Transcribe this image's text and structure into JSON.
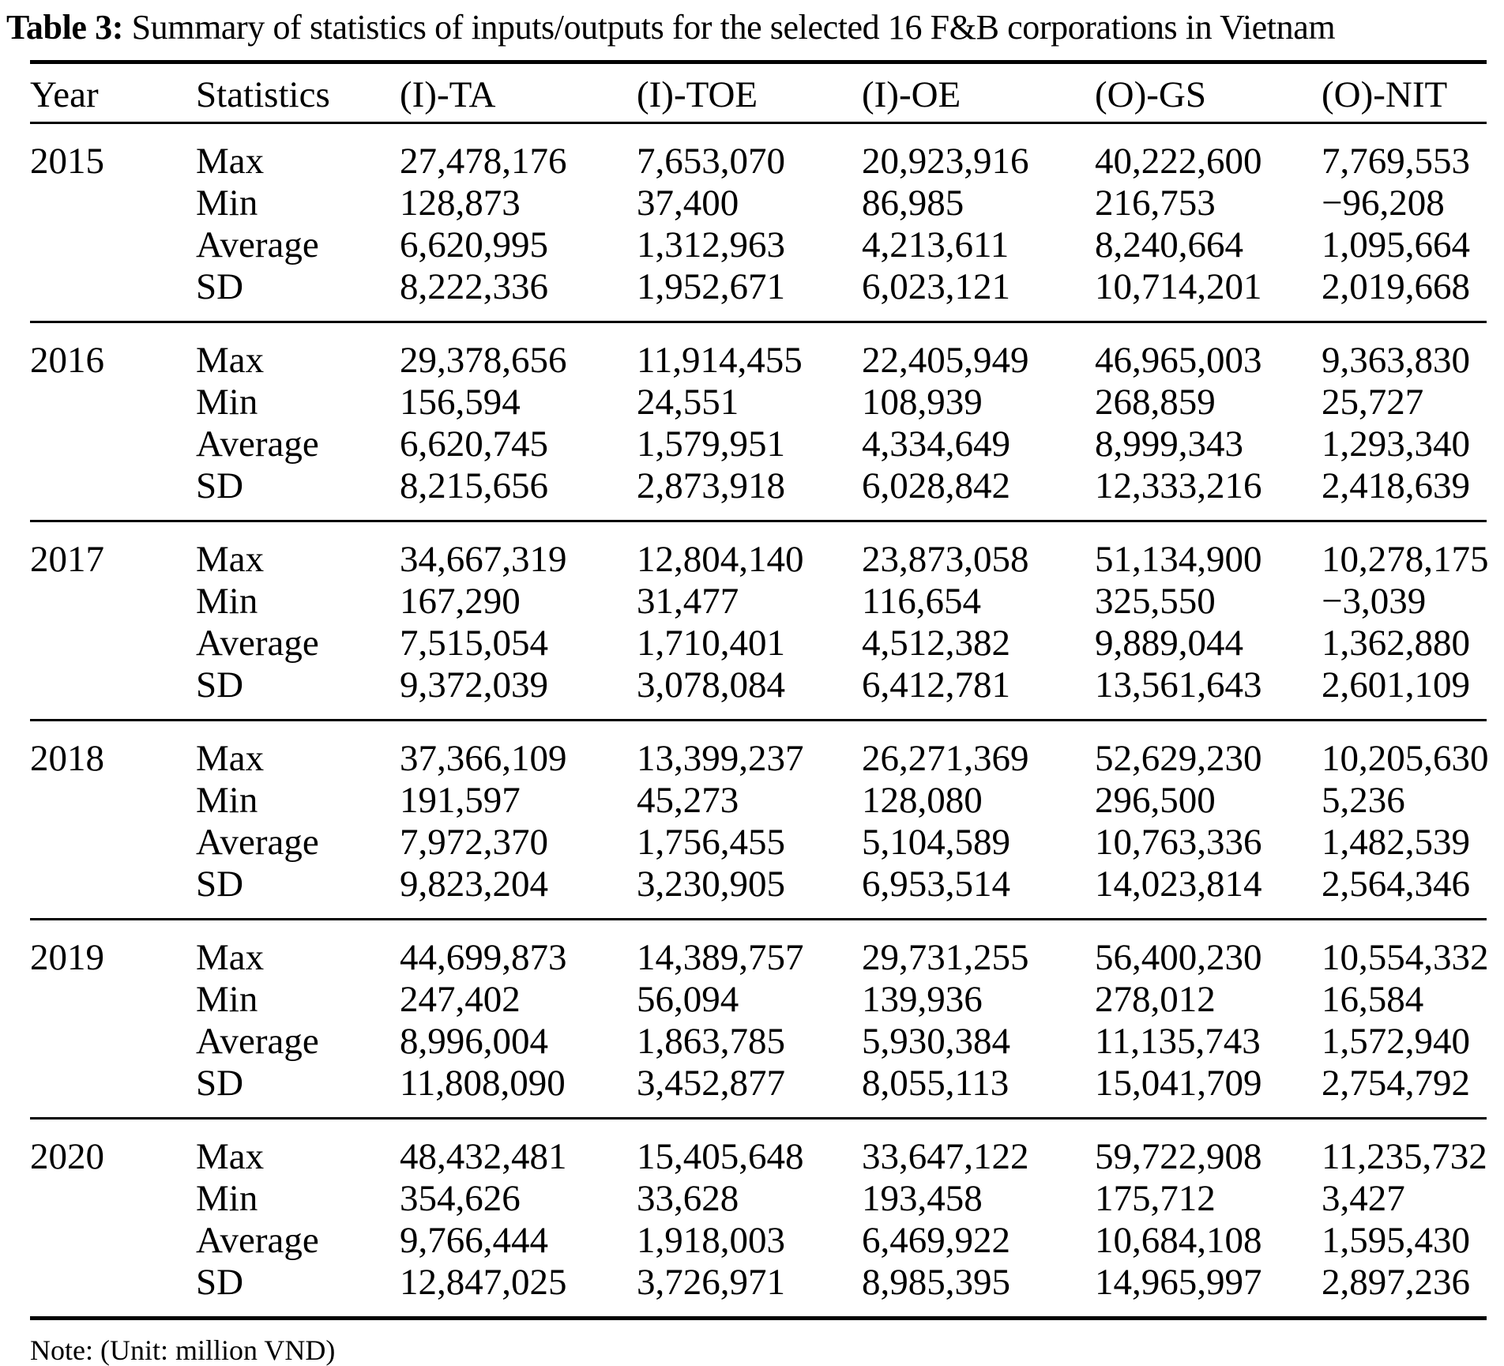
{
  "title": {
    "label": "Table 3:",
    "text": "Summary of statistics of inputs/outputs for the selected 16 F&B corporations in Vietnam"
  },
  "table": {
    "columns": [
      "Year",
      "Statistics",
      "(I)-TA",
      "(I)-TOE",
      "(I)-OE",
      "(O)-GS",
      "(O)-NIT"
    ],
    "blocks": [
      {
        "year": "2015",
        "rows": [
          {
            "stat": "Max",
            "values": [
              "27,478,176",
              "7,653,070",
              "20,923,916",
              "40,222,600",
              "7,769,553"
            ]
          },
          {
            "stat": "Min",
            "values": [
              "128,873",
              "37,400",
              "86,985",
              "216,753",
              "−96,208"
            ]
          },
          {
            "stat": "Average",
            "values": [
              "6,620,995",
              "1,312,963",
              "4,213,611",
              "8,240,664",
              "1,095,664"
            ]
          },
          {
            "stat": "SD",
            "values": [
              "8,222,336",
              "1,952,671",
              "6,023,121",
              "10,714,201",
              "2,019,668"
            ]
          }
        ]
      },
      {
        "year": "2016",
        "rows": [
          {
            "stat": "Max",
            "values": [
              "29,378,656",
              "11,914,455",
              "22,405,949",
              "46,965,003",
              "9,363,830"
            ]
          },
          {
            "stat": "Min",
            "values": [
              "156,594",
              "24,551",
              "108,939",
              "268,859",
              "25,727"
            ]
          },
          {
            "stat": "Average",
            "values": [
              "6,620,745",
              "1,579,951",
              "4,334,649",
              "8,999,343",
              "1,293,340"
            ]
          },
          {
            "stat": "SD",
            "values": [
              "8,215,656",
              "2,873,918",
              "6,028,842",
              "12,333,216",
              "2,418,639"
            ]
          }
        ]
      },
      {
        "year": "2017",
        "rows": [
          {
            "stat": "Max",
            "values": [
              "34,667,319",
              "12,804,140",
              "23,873,058",
              "51,134,900",
              "10,278,175"
            ]
          },
          {
            "stat": "Min",
            "values": [
              "167,290",
              "31,477",
              "116,654",
              "325,550",
              "−3,039"
            ]
          },
          {
            "stat": "Average",
            "values": [
              "7,515,054",
              "1,710,401",
              "4,512,382",
              "9,889,044",
              "1,362,880"
            ]
          },
          {
            "stat": "SD",
            "values": [
              "9,372,039",
              "3,078,084",
              "6,412,781",
              "13,561,643",
              "2,601,109"
            ]
          }
        ]
      },
      {
        "year": "2018",
        "rows": [
          {
            "stat": "Max",
            "values": [
              "37,366,109",
              "13,399,237",
              "26,271,369",
              "52,629,230",
              "10,205,630"
            ]
          },
          {
            "stat": "Min",
            "values": [
              "191,597",
              "45,273",
              "128,080",
              "296,500",
              "5,236"
            ]
          },
          {
            "stat": "Average",
            "values": [
              "7,972,370",
              "1,756,455",
              "5,104,589",
              "10,763,336",
              "1,482,539"
            ]
          },
          {
            "stat": "SD",
            "values": [
              "9,823,204",
              "3,230,905",
              "6,953,514",
              "14,023,814",
              "2,564,346"
            ]
          }
        ]
      },
      {
        "year": "2019",
        "rows": [
          {
            "stat": "Max",
            "values": [
              "44,699,873",
              "14,389,757",
              "29,731,255",
              "56,400,230",
              "10,554,332"
            ]
          },
          {
            "stat": "Min",
            "values": [
              "247,402",
              "56,094",
              "139,936",
              "278,012",
              "16,584"
            ]
          },
          {
            "stat": "Average",
            "values": [
              "8,996,004",
              "1,863,785",
              "5,930,384",
              "11,135,743",
              "1,572,940"
            ]
          },
          {
            "stat": "SD",
            "values": [
              "11,808,090",
              "3,452,877",
              "8,055,113",
              "15,041,709",
              "2,754,792"
            ]
          }
        ]
      },
      {
        "year": "2020",
        "rows": [
          {
            "stat": "Max",
            "values": [
              "48,432,481",
              "15,405,648",
              "33,647,122",
              "59,722,908",
              "11,235,732"
            ]
          },
          {
            "stat": "Min",
            "values": [
              "354,626",
              "33,628",
              "193,458",
              "175,712",
              "3,427"
            ]
          },
          {
            "stat": "Average",
            "values": [
              "9,766,444",
              "1,918,003",
              "6,469,922",
              "10,684,108",
              "1,595,430"
            ]
          },
          {
            "stat": "SD",
            "values": [
              "12,847,025",
              "3,726,971",
              "8,985,395",
              "14,965,997",
              "2,897,236"
            ]
          }
        ]
      }
    ]
  },
  "note": "Note: (Unit: million VND)"
}
